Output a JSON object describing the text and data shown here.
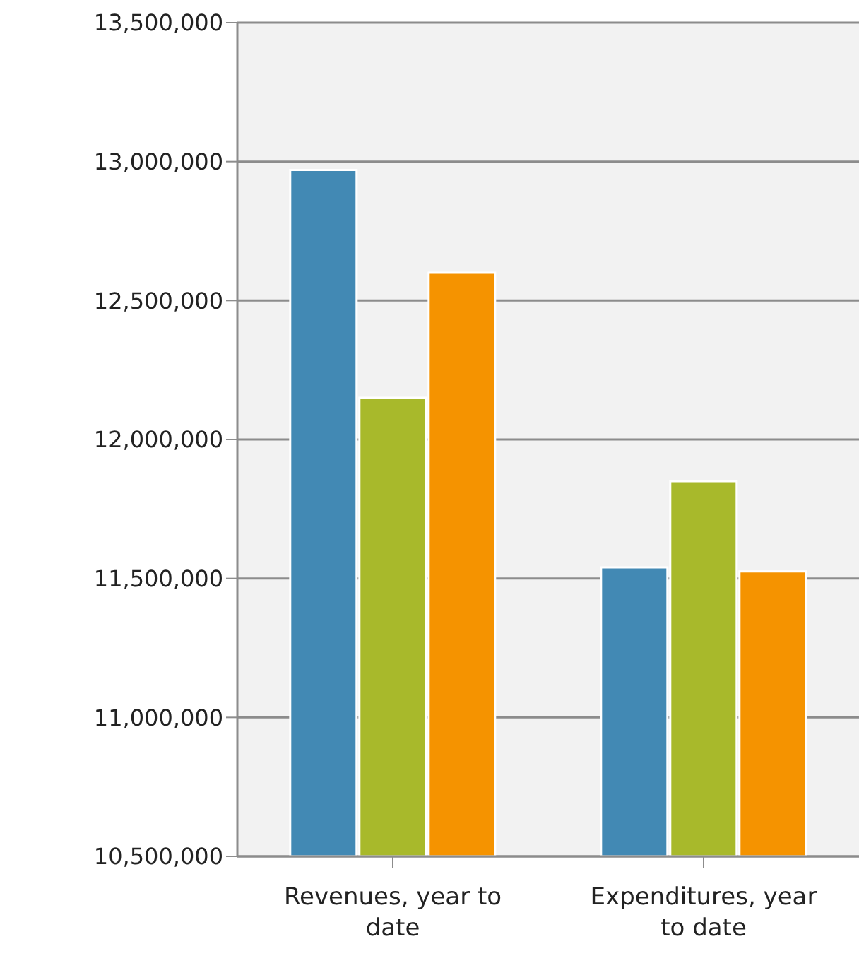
{
  "chart_data": {
    "type": "bar",
    "categories": [
      "Revenues, year to date",
      "Expenditures, year to date"
    ],
    "series": [
      {
        "color": "#4289b4",
        "values": [
          12970000,
          11540000
        ]
      },
      {
        "color": "#a8b92b",
        "values": [
          12150000,
          11850000
        ]
      },
      {
        "color": "#f59300",
        "values": [
          12600000,
          11525000
        ]
      }
    ],
    "ylim": [
      10500000,
      13500000
    ],
    "yticks": [
      {
        "value": 10500000,
        "label": "10,500,000"
      },
      {
        "value": 11000000,
        "label": "11,000,000"
      },
      {
        "value": 11500000,
        "label": "11,500,000"
      },
      {
        "value": 12000000,
        "label": "12,000,000"
      },
      {
        "value": 12500000,
        "label": "12,500,000"
      },
      {
        "value": 13000000,
        "label": "13,000,000"
      },
      {
        "value": 13500000,
        "label": "13,500,000"
      }
    ],
    "grid": "y"
  }
}
